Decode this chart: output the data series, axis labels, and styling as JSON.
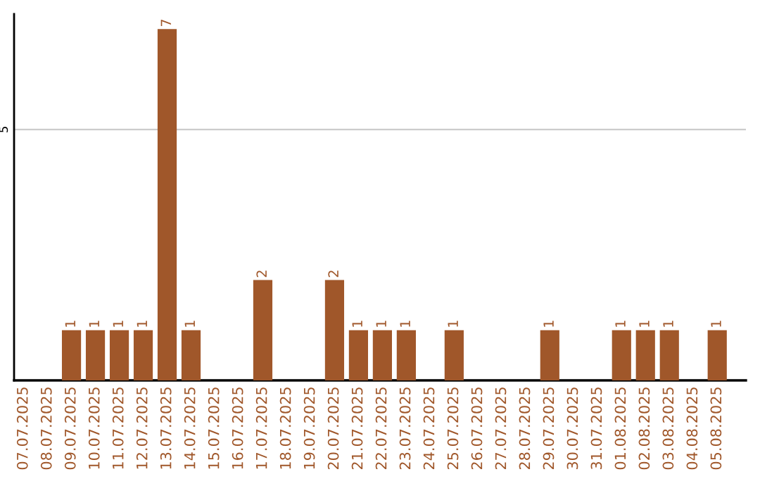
{
  "chart_data": {
    "type": "bar",
    "color": "#a0572a",
    "categories": [
      "07.07.2025",
      "08.07.2025",
      "09.07.2025",
      "10.07.2025",
      "11.07.2025",
      "12.07.2025",
      "13.07.2025",
      "14.07.2025",
      "15.07.2025",
      "16.07.2025",
      "17.07.2025",
      "18.07.2025",
      "19.07.2025",
      "20.07.2025",
      "21.07.2025",
      "22.07.2025",
      "23.07.2025",
      "24.07.2025",
      "25.07.2025",
      "26.07.2025",
      "27.07.2025",
      "28.07.2025",
      "29.07.2025",
      "30.07.2025",
      "31.07.2025",
      "01.08.2025",
      "02.08.2025",
      "03.08.2025",
      "04.08.2025",
      "05.08.2025"
    ],
    "values": [
      0,
      0,
      1,
      1,
      1,
      1,
      7,
      1,
      0,
      0,
      2,
      0,
      0,
      2,
      1,
      1,
      1,
      0,
      1,
      0,
      0,
      0,
      1,
      0,
      0,
      1,
      1,
      1,
      0,
      1
    ],
    "value_labels": [
      null,
      null,
      "1",
      "1",
      "1",
      "1",
      "7",
      "1",
      null,
      null,
      "2",
      null,
      null,
      "2",
      "1",
      "1",
      "1",
      null,
      "1",
      null,
      null,
      null,
      "1",
      null,
      null,
      "1",
      "1",
      "1",
      null,
      "1"
    ],
    "ylim": [
      0,
      7.3
    ],
    "yticks": [
      5
    ],
    "grid": "y",
    "legend": false
  }
}
